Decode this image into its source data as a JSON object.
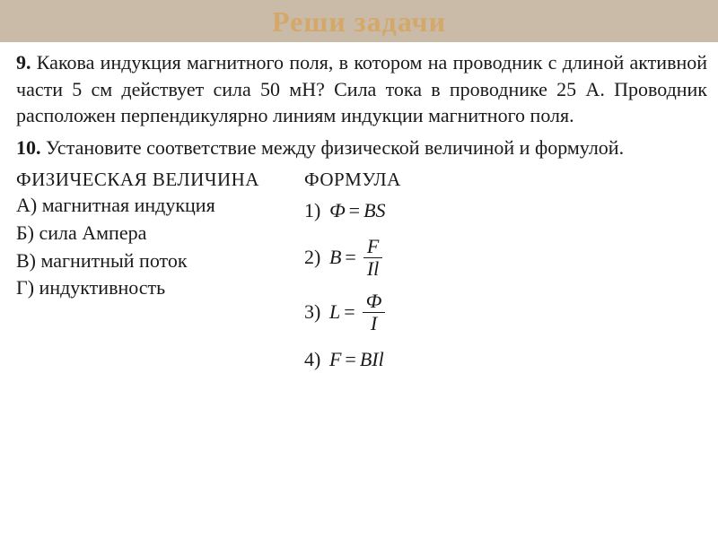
{
  "header": {
    "title": "Реши задачи"
  },
  "problem9": {
    "num": "9.",
    "text": "Какова индукция магнитного поля, в котором на проводник с длиной активной части 5 см действует сила 50 мН? Сила тока в проводнике 25 А. Проводник расположен перпендикулярно ли­ниям индукции магнитного поля."
  },
  "problem10": {
    "num": "10.",
    "text": "Установите соответствие между физической величиной и формулой."
  },
  "leftcol": {
    "head": "ФИЗИЧЕСКАЯ ВЕЛИЧИНА",
    "a": "А) магнитная индукция",
    "b": "Б) сила Ампера",
    "v": "В) магнитный поток",
    "g": "Г) индуктивность"
  },
  "rightcol": {
    "head": "ФОРМУЛА",
    "f1": {
      "n": "1)",
      "lhs": "Ф",
      "rhs": "BS"
    },
    "f2": {
      "n": "2)",
      "lhs": "B",
      "num": "F",
      "den": "Il"
    },
    "f3": {
      "n": "3)",
      "lhs": "L",
      "num": "Ф",
      "den": "I"
    },
    "f4": {
      "n": "4)",
      "lhs": "F",
      "rhs": "BIl"
    }
  },
  "colors": {
    "header_bg": "#c9bba8",
    "header_text": "#d4a868",
    "text": "#1a1a1a",
    "bg": "#ffffff"
  }
}
